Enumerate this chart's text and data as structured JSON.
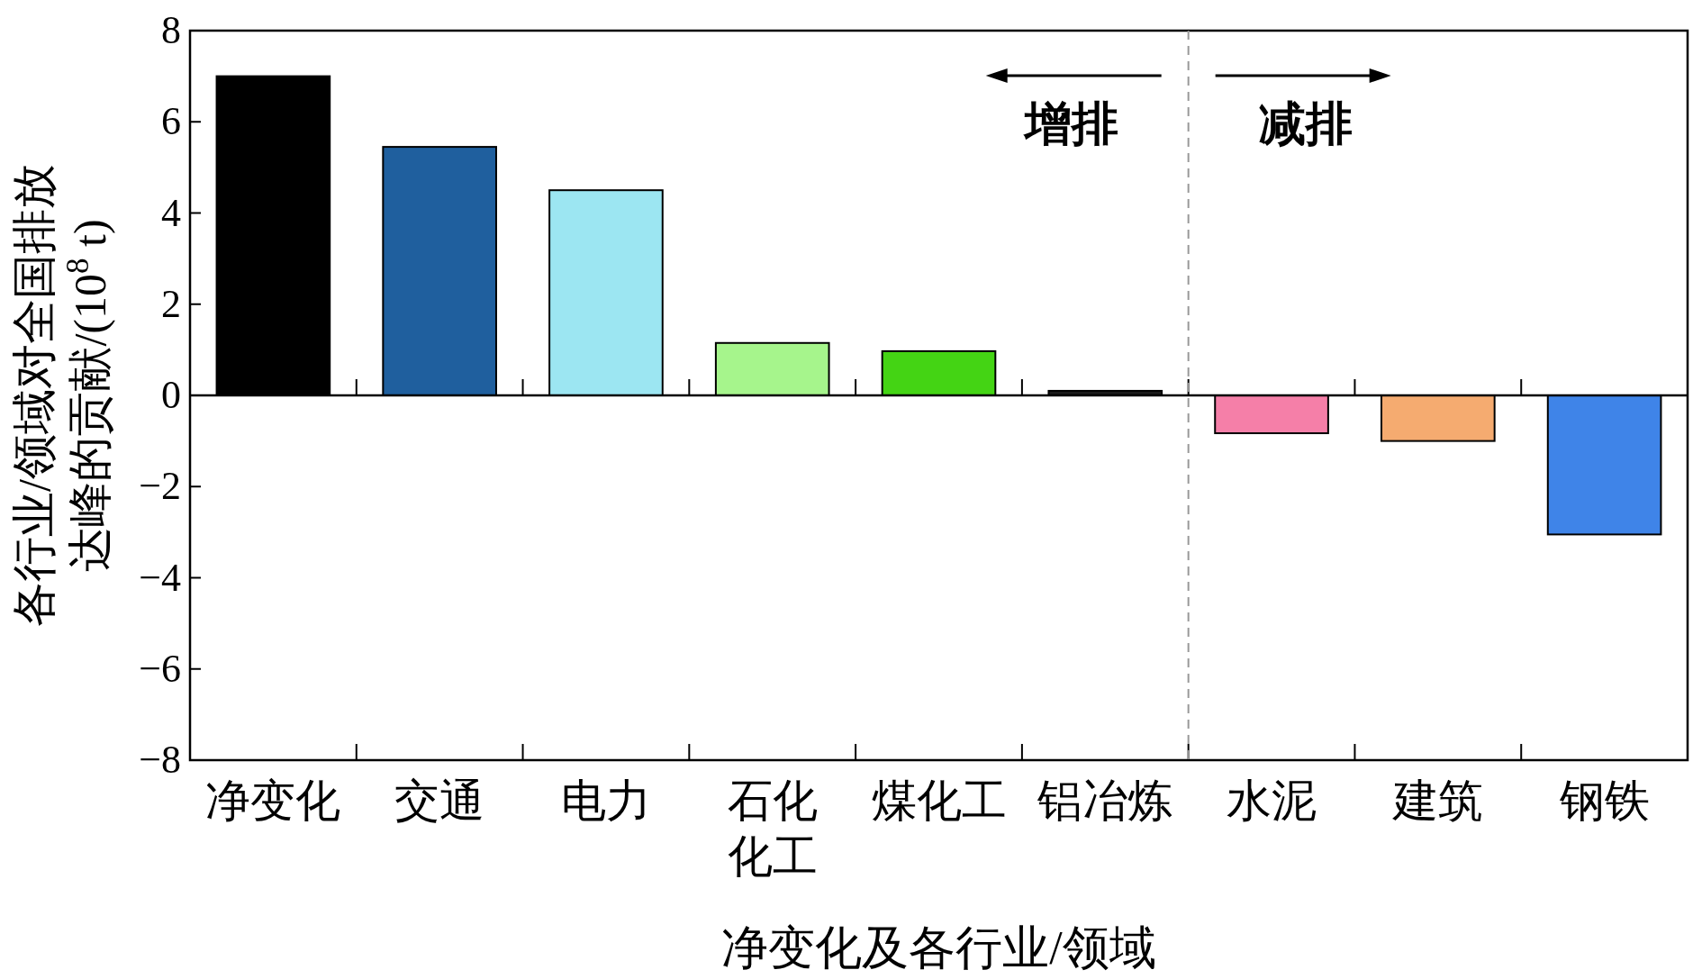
{
  "chart_data": {
    "type": "bar",
    "xlabel": "净变化及各行业/领域",
    "ylabel": "各行业/领域对全国排放达峰的贡献/(10$^{8}$ t)",
    "categories": [
      "净变化",
      "交通",
      "电力",
      "石化化工",
      "煤化工",
      "铝冶炼",
      "水泥",
      "建筑",
      "钢铁"
    ],
    "values": [
      7.0,
      5.45,
      4.5,
      1.15,
      0.97,
      0.1,
      -0.83,
      -1.0,
      -3.05
    ],
    "colors": [
      "#000000",
      "#1f5f9e",
      "#9ce6f2",
      "#a6f58c",
      "#44d414",
      "#1a1a1a",
      "#f57fa8",
      "#f5ab70",
      "#3f84e8"
    ],
    "ylim": [
      -8,
      8
    ],
    "yticks": [
      {
        "value": -8,
        "label": "−8"
      },
      {
        "value": -6,
        "label": "−6"
      },
      {
        "value": -4,
        "label": "−4"
      },
      {
        "value": -2,
        "label": "−2"
      },
      0,
      2,
      4,
      6,
      8
    ],
    "annotations": [
      "增排",
      "减排"
    ]
  }
}
